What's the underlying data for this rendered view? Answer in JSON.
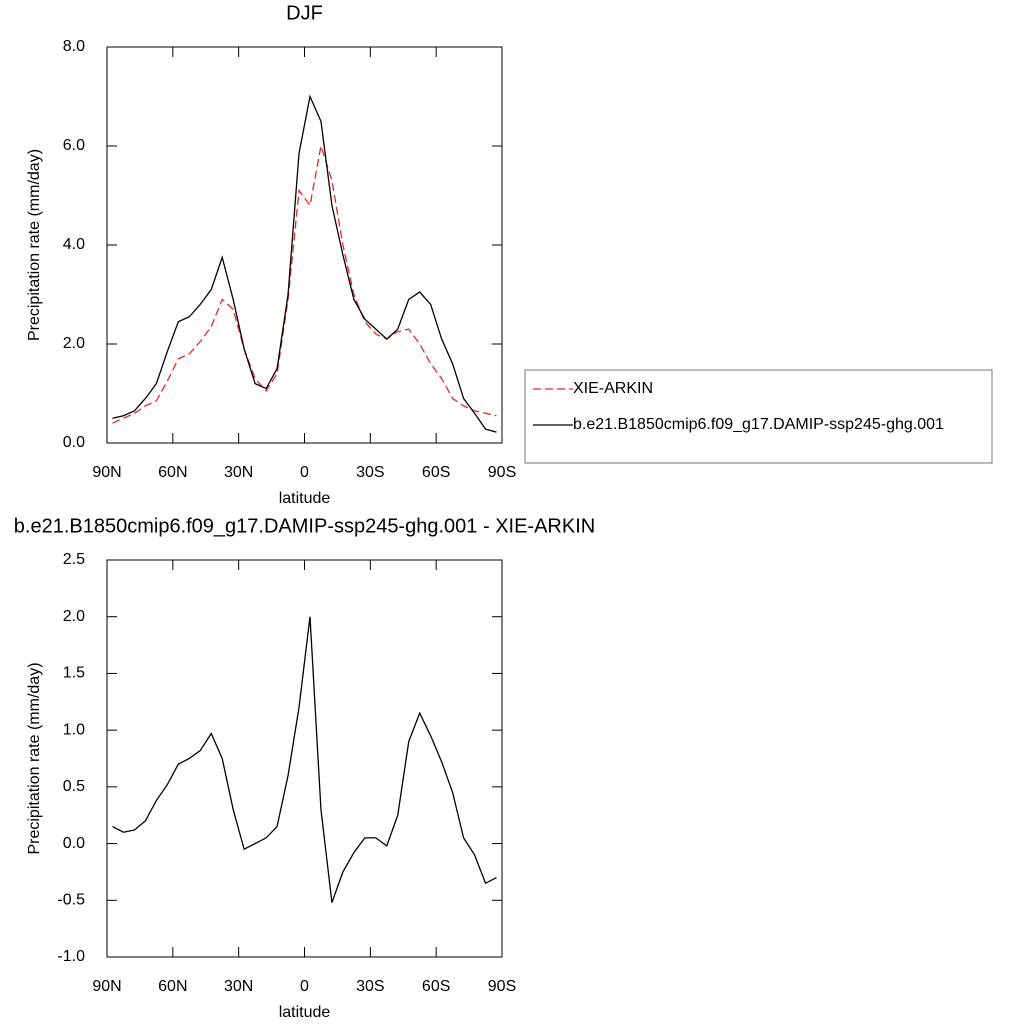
{
  "chart_data": [
    {
      "type": "line",
      "title": "DJF",
      "xlabel": "latitude",
      "ylabel": "Precipitation rate (mm/day)",
      "x": [
        87.5,
        82.5,
        77.5,
        72.5,
        67.5,
        62.5,
        57.5,
        52.5,
        47.5,
        42.5,
        37.5,
        32.5,
        27.5,
        22.5,
        17.5,
        12.5,
        7.5,
        2.5,
        -2.5,
        -7.5,
        -12.5,
        -17.5,
        -22.5,
        -27.5,
        -32.5,
        -37.5,
        -42.5,
        -47.5,
        -52.5,
        -57.5,
        -62.5,
        -67.5,
        -72.5,
        -77.5,
        -82.5,
        -87.5
      ],
      "series": [
        {
          "name": "XIE-ARKIN",
          "color": "#e8272a",
          "dash": "dashed",
          "values": [
            0.4,
            0.5,
            0.6,
            0.75,
            0.85,
            1.25,
            1.7,
            1.8,
            2.05,
            2.35,
            2.9,
            2.7,
            1.9,
            1.3,
            1.05,
            1.4,
            2.9,
            5.1,
            4.8,
            6.0,
            5.3,
            4.0,
            3.0,
            2.45,
            2.2,
            2.1,
            2.25,
            2.3,
            2.0,
            1.6,
            1.3,
            0.9,
            0.75,
            0.65,
            0.6,
            0.55
          ]
        },
        {
          "name": "b.e21.B1850cmip6.f09_g17.DAMIP-ssp245-ghg.001",
          "color": "#000000",
          "dash": "solid",
          "values": [
            0.5,
            0.55,
            0.65,
            0.9,
            1.2,
            1.85,
            2.45,
            2.55,
            2.8,
            3.1,
            3.75,
            2.9,
            1.9,
            1.2,
            1.1,
            1.5,
            3.0,
            5.85,
            7.0,
            6.5,
            4.8,
            3.8,
            2.9,
            2.5,
            2.3,
            2.1,
            2.3,
            2.9,
            3.05,
            2.8,
            2.1,
            1.6,
            0.9,
            0.6,
            0.28,
            0.22
          ]
        }
      ],
      "xlim": [
        90,
        -90
      ],
      "xticks": [
        {
          "value": 90,
          "label": "90N"
        },
        {
          "value": 60,
          "label": "60N"
        },
        {
          "value": 30,
          "label": "30N"
        },
        0,
        {
          "value": -30,
          "label": "30S"
        },
        {
          "value": -60,
          "label": "60S"
        },
        {
          "value": -90,
          "label": "90S"
        }
      ],
      "ylim": [
        0,
        8
      ],
      "yticks": [
        {
          "value": 0,
          "label": "0.0"
        },
        {
          "value": 2,
          "label": "2.0"
        },
        {
          "value": 4,
          "label": "4.0"
        },
        {
          "value": 6,
          "label": "6.0"
        },
        {
          "value": 8,
          "label": "8.0"
        }
      ],
      "legend": "right"
    },
    {
      "type": "line",
      "title": "b.e21.B1850cmip6.f09_g17.DAMIP-ssp245-ghg.001 - XIE-ARKIN",
      "xlabel": "latitude",
      "ylabel": "Precipitation rate (mm/day)",
      "x": [
        87.5,
        82.5,
        77.5,
        72.5,
        67.5,
        62.5,
        57.5,
        52.5,
        47.5,
        42.5,
        37.5,
        32.5,
        27.5,
        22.5,
        17.5,
        12.5,
        7.5,
        2.5,
        -2.5,
        -7.5,
        -12.5,
        -17.5,
        -22.5,
        -27.5,
        -32.5,
        -37.5,
        -42.5,
        -47.5,
        -52.5,
        -57.5,
        -62.5,
        -67.5,
        -72.5,
        -77.5,
        -82.5,
        -87.5
      ],
      "values": [
        0.15,
        0.1,
        0.12,
        0.2,
        0.38,
        0.52,
        0.7,
        0.75,
        0.82,
        0.97,
        0.75,
        0.3,
        -0.05,
        0.0,
        0.05,
        0.15,
        0.6,
        1.2,
        2.0,
        0.3,
        -0.52,
        -0.25,
        -0.08,
        0.05,
        0.05,
        -0.02,
        0.25,
        0.9,
        1.15,
        0.95,
        0.72,
        0.45,
        0.05,
        -0.1,
        -0.35,
        -0.3
      ],
      "color": "#000000",
      "xlim": [
        90,
        -90
      ],
      "xticks": [
        {
          "value": 90,
          "label": "90N"
        },
        {
          "value": 60,
          "label": "60N"
        },
        {
          "value": 30,
          "label": "30N"
        },
        0,
        {
          "value": -30,
          "label": "30S"
        },
        {
          "value": -60,
          "label": "60S"
        },
        {
          "value": -90,
          "label": "90S"
        }
      ],
      "ylim": [
        -1,
        2.5
      ],
      "yticks": [
        {
          "value": -1,
          "label": "-1.0"
        },
        {
          "value": -0.5,
          "label": "-0.5"
        },
        {
          "value": 0,
          "label": "0.0"
        },
        {
          "value": 0.5,
          "label": "0.5"
        },
        {
          "value": 1,
          "label": "1.0"
        },
        {
          "value": 1.5,
          "label": "1.5"
        },
        {
          "value": 2,
          "label": "2.0"
        },
        {
          "value": 2.5,
          "label": "2.5"
        }
      ]
    }
  ]
}
